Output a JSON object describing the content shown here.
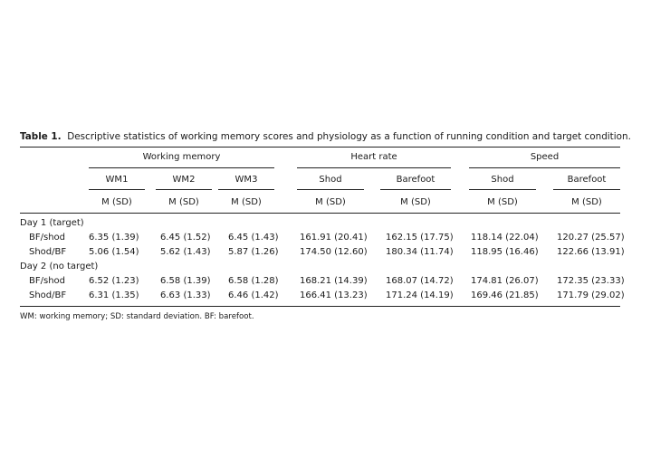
{
  "caption": {
    "label": "Table 1.",
    "text": "Descriptive statistics of working memory scores and physiology as a function of running condition and target condition."
  },
  "groups": [
    "Working memory",
    "Heart rate",
    "Speed"
  ],
  "subheaders": [
    "WM1",
    "WM2",
    "WM3",
    "Shod",
    "Barefoot",
    "Shod",
    "Barefoot"
  ],
  "stat_label": "M (SD)",
  "sections": [
    {
      "title": "Day 1 (target)",
      "rows": [
        {
          "label": "BF/shod",
          "values": [
            "6.35 (1.39)",
            "6.45 (1.52)",
            "6.45 (1.43)",
            "161.91 (20.41)",
            "162.15 (17.75)",
            "118.14 (22.04)",
            "120.27 (25.57)"
          ]
        },
        {
          "label": "Shod/BF",
          "values": [
            "5.06 (1.54)",
            "5.62 (1.43)",
            "5.87 (1.26)",
            "174.50 (12.60)",
            "180.34 (11.74)",
            "118.95 (16.46)",
            "122.66 (13.91)"
          ]
        }
      ]
    },
    {
      "title": "Day 2 (no target)",
      "rows": [
        {
          "label": "BF/shod",
          "values": [
            "6.52 (1.23)",
            "6.58 (1.39)",
            "6.58 (1.28)",
            "168.21 (14.39)",
            "168.07 (14.72)",
            "174.81 (26.07)",
            "172.35 (23.33)"
          ]
        },
        {
          "label": "Shod/BF",
          "values": [
            "6.31 (1.35)",
            "6.63 (1.33)",
            "6.46 (1.42)",
            "166.41 (13.23)",
            "171.24 (14.19)",
            "169.46 (21.85)",
            "171.79 (29.02)"
          ]
        }
      ]
    }
  ],
  "footnote": "WM: working memory; SD: standard deviation. BF: barefoot."
}
